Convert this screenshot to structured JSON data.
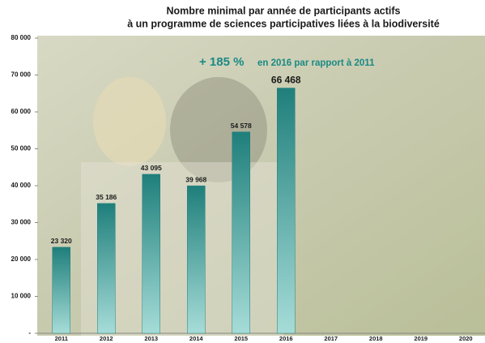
{
  "chart_data": {
    "type": "bar",
    "title": [
      "Nombre minimal par année de participants actifs",
      "à un programme de sciences participatives liées à la biodiversité"
    ],
    "annotation": {
      "highlight": "+ 185 %",
      "text": "en 2016 par rapport à 2011"
    },
    "categories": [
      "2011",
      "2012",
      "2013",
      "2014",
      "2015",
      "2016",
      "2017",
      "2018",
      "2019",
      "2020"
    ],
    "values": [
      23320,
      35186,
      43095,
      39968,
      54578,
      66468,
      null,
      null,
      null,
      null
    ],
    "value_labels": [
      "23 320",
      "35 186",
      "43 095",
      "39 968",
      "54 578",
      "66 468",
      null,
      null,
      null,
      null
    ],
    "color": "#1f7f7b",
    "ylim": [
      0,
      80000
    ],
    "yticks": [
      {
        "value": 0,
        "label": "-"
      },
      {
        "value": 10000,
        "label": "10 000"
      },
      {
        "value": 20000,
        "label": "20 000"
      },
      {
        "value": 30000,
        "label": "30 000"
      },
      {
        "value": 40000,
        "label": "40 000"
      },
      {
        "value": 50000,
        "label": "50 000"
      },
      {
        "value": 60000,
        "label": "60 000"
      },
      {
        "value": 70000,
        "label": "70 000"
      },
      {
        "value": 80000,
        "label": "80 000"
      }
    ],
    "grid": false
  }
}
